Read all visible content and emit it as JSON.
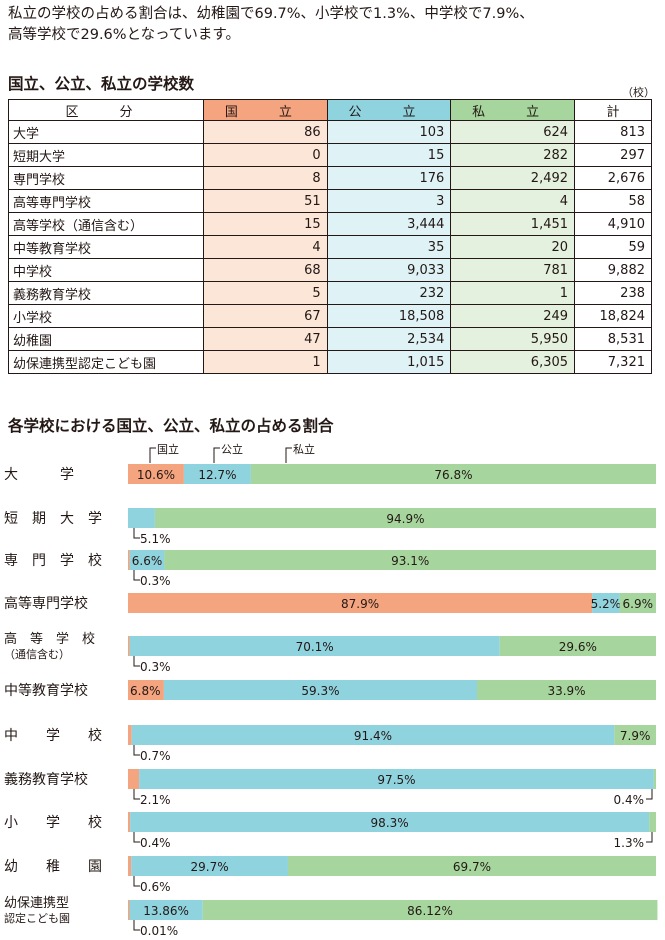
{
  "intro_lines": [
    "私立の学校の占める割合は、幼稚園で69.7%、小学校で1.3%、中学校で7.9%、",
    "高等学校で29.6%となっています。"
  ],
  "table_title": "国立、公立、私立の学校数",
  "table_unit": "（校）",
  "table": {
    "headers": [
      "区　分",
      "国　立",
      "公　立",
      "私　立",
      "計"
    ],
    "rows": [
      [
        "大学",
        "86",
        "103",
        "624",
        "813"
      ],
      [
        "短期大学",
        "0",
        "15",
        "282",
        "297"
      ],
      [
        "専門学校",
        "8",
        "176",
        "2,492",
        "2,676"
      ],
      [
        "高等専門学校",
        "51",
        "3",
        "4",
        "58"
      ],
      [
        "高等学校（通信含む）",
        "15",
        "3,444",
        "1,451",
        "4,910"
      ],
      [
        "中等教育学校",
        "4",
        "35",
        "20",
        "59"
      ],
      [
        "中学校",
        "68",
        "9,033",
        "781",
        "9,882"
      ],
      [
        "義務教育学校",
        "5",
        "232",
        "1",
        "238"
      ],
      [
        "小学校",
        "67",
        "18,508",
        "249",
        "18,824"
      ],
      [
        "幼稚園",
        "47",
        "2,534",
        "5,950",
        "8,531"
      ],
      [
        "幼保連携型認定こども園",
        "1",
        "1,015",
        "6,305",
        "7,321"
      ]
    ]
  },
  "chart_title": "各学校における国立、公立、私立の占める割合",
  "chart_data": {
    "type": "bar",
    "orientation": "horizontal",
    "stacked": true,
    "unit": "%",
    "legend": [
      "国立",
      "公立",
      "私立"
    ],
    "colors": [
      "#f4a47f",
      "#8fd3df",
      "#a6d69e"
    ],
    "categories": [
      "大学",
      "短期大学",
      "専門学校",
      "高等専門学校",
      "高等学校（通信含む）",
      "中等教育学校",
      "中学校",
      "義務教育学校",
      "小学校",
      "幼稚園",
      "幼保連携型認定こども園"
    ],
    "category_labels": [
      [
        "大　　　学"
      ],
      [
        "短　期　大　学"
      ],
      [
        "専　門　学　校"
      ],
      [
        "高等専門学校"
      ],
      [
        "高　等　学　校",
        "（通信含む）"
      ],
      [
        "中等教育学校"
      ],
      [
        "中　　学　　校"
      ],
      [
        "義務教育学校"
      ],
      [
        "小　　学　　校"
      ],
      [
        "幼　　稚　　園"
      ],
      [
        "幼保連携型",
        "認定こども園"
      ]
    ],
    "series": [
      {
        "name": "国立",
        "values": [
          10.6,
          0,
          0.3,
          87.9,
          0.3,
          6.8,
          0.7,
          2.1,
          0.4,
          0.6,
          0.01
        ]
      },
      {
        "name": "公立",
        "values": [
          12.7,
          5.1,
          6.6,
          5.2,
          70.1,
          59.3,
          91.4,
          97.5,
          98.3,
          29.7,
          13.86
        ]
      },
      {
        "name": "私立",
        "values": [
          76.8,
          94.9,
          93.1,
          6.9,
          29.6,
          33.9,
          7.9,
          0.4,
          1.3,
          69.7,
          86.12
        ]
      }
    ],
    "inside_labels": [
      [
        "10.6%",
        "12.7%",
        "76.8%"
      ],
      [
        "",
        "",
        "94.9%"
      ],
      [
        "",
        "6.6%",
        "93.1%"
      ],
      [
        "87.9%",
        "5.2%",
        "6.9%"
      ],
      [
        "",
        "70.1%",
        "29.6%"
      ],
      [
        "6.8%",
        "59.3%",
        "33.9%"
      ],
      [
        "",
        "91.4%",
        "7.9%"
      ],
      [
        "",
        "97.5%",
        ""
      ],
      [
        "",
        "98.3%",
        ""
      ],
      [
        "",
        "29.7%",
        "69.7%"
      ],
      [
        "",
        "13.86%",
        "86.12%"
      ]
    ],
    "below_left_labels": [
      "",
      "5.1%",
      "0.3%",
      "",
      "0.3%",
      "",
      "0.7%",
      "2.1%",
      "0.4%",
      "0.6%",
      "0.01%"
    ],
    "below_right_labels": [
      "",
      "",
      "",
      "",
      "",
      "",
      "",
      "0.4%",
      "1.3%",
      "",
      ""
    ],
    "xlim": [
      0,
      100
    ]
  }
}
